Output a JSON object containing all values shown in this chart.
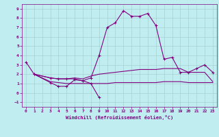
{
  "color": "#800080",
  "bg_color": "#c0eef0",
  "grid_color": "#a0c8c8",
  "xlabel": "Windchill (Refroidissement éolien,°C)",
  "ylim": [
    -1.5,
    9.5
  ],
  "xlim": [
    -0.5,
    23.5
  ],
  "yticks": [
    -1,
    0,
    1,
    2,
    3,
    4,
    5,
    6,
    7,
    8,
    9
  ],
  "xticks": [
    0,
    1,
    2,
    3,
    4,
    5,
    6,
    7,
    8,
    9,
    10,
    11,
    12,
    13,
    14,
    15,
    16,
    17,
    18,
    19,
    20,
    21,
    22,
    23
  ],
  "line_main_x": [
    1,
    3,
    4,
    5,
    6,
    7,
    8,
    9,
    10,
    11,
    12,
    13,
    14,
    15,
    16,
    17,
    18,
    19,
    20,
    21,
    22,
    23
  ],
  "line_main_y": [
    2.0,
    1.6,
    1.5,
    1.5,
    1.5,
    1.3,
    1.6,
    4.0,
    7.0,
    7.5,
    8.8,
    8.2,
    8.2,
    8.5,
    7.2,
    3.6,
    3.8,
    2.2,
    2.2,
    2.6,
    3.0,
    2.2
  ],
  "line_start_x": [
    0,
    1,
    3,
    4,
    5,
    6,
    7,
    8,
    9
  ],
  "line_start_y": [
    3.3,
    2.0,
    1.1,
    0.7,
    0.7,
    1.4,
    1.3,
    1.0,
    -0.5
  ],
  "line_mid_x": [
    1,
    3,
    4,
    5,
    6,
    7,
    8,
    9,
    10,
    11,
    12,
    13,
    14,
    15,
    16,
    17,
    18,
    19,
    20,
    21,
    22,
    23
  ],
  "line_mid_y": [
    2.0,
    1.6,
    1.5,
    1.5,
    1.6,
    1.5,
    1.8,
    2.0,
    2.1,
    2.2,
    2.3,
    2.4,
    2.5,
    2.5,
    2.5,
    2.6,
    2.6,
    2.6,
    2.2,
    2.2,
    2.2,
    1.2
  ],
  "line_flat_x": [
    1,
    3,
    4,
    5,
    6,
    7,
    8,
    9,
    10,
    11,
    12,
    13,
    14,
    15,
    16,
    17,
    18,
    19,
    20,
    21,
    22,
    23
  ],
  "line_flat_y": [
    2.0,
    1.2,
    1.1,
    1.0,
    1.0,
    1.0,
    1.0,
    1.0,
    1.0,
    1.1,
    1.1,
    1.1,
    1.1,
    1.1,
    1.1,
    1.2,
    1.2,
    1.2,
    1.1,
    1.1,
    1.1,
    1.1
  ]
}
